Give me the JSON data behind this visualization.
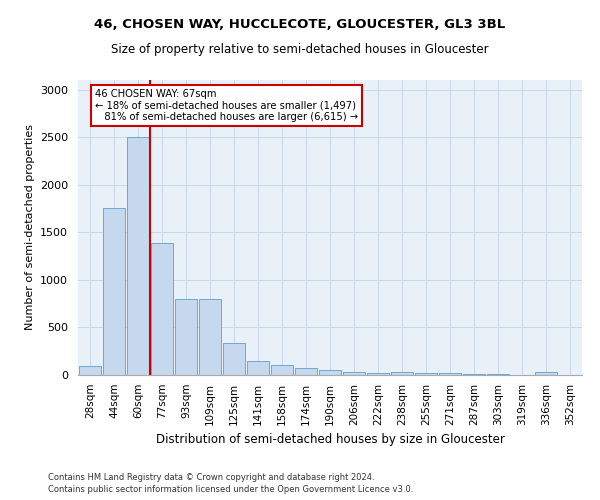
{
  "title1": "46, CHOSEN WAY, HUCCLECOTE, GLOUCESTER, GL3 3BL",
  "title2": "Size of property relative to semi-detached houses in Gloucester",
  "xlabel": "Distribution of semi-detached houses by size in Gloucester",
  "ylabel": "Number of semi-detached properties",
  "footnote1": "Contains HM Land Registry data © Crown copyright and database right 2024.",
  "footnote2": "Contains public sector information licensed under the Open Government Licence v3.0.",
  "bar_labels": [
    "28sqm",
    "44sqm",
    "60sqm",
    "77sqm",
    "93sqm",
    "109sqm",
    "125sqm",
    "141sqm",
    "158sqm",
    "174sqm",
    "190sqm",
    "206sqm",
    "222sqm",
    "238sqm",
    "255sqm",
    "271sqm",
    "287sqm",
    "303sqm",
    "319sqm",
    "336sqm",
    "352sqm"
  ],
  "bar_values": [
    90,
    1750,
    2500,
    1390,
    800,
    800,
    340,
    150,
    100,
    70,
    50,
    30,
    20,
    30,
    20,
    20,
    10,
    10,
    5,
    30,
    5
  ],
  "bar_color": "#c5d8ed",
  "bar_edge_color": "#5a9fd4",
  "property_size": "67sqm",
  "smaller_pct": "18%",
  "smaller_count": "1,497",
  "larger_pct": "81%",
  "larger_count": "6,615",
  "annotation_box_color": "#ffffff",
  "annotation_box_edge": "#cc0000",
  "line_color": "#cc0000",
  "ylim": [
    0,
    3100
  ],
  "yticks": [
    0,
    500,
    1000,
    1500,
    2000,
    2500,
    3000
  ],
  "grid_color": "#c8d8e8",
  "bg_color": "#e8f0f8",
  "fig_width": 6.0,
  "fig_height": 5.0,
  "dpi": 100
}
